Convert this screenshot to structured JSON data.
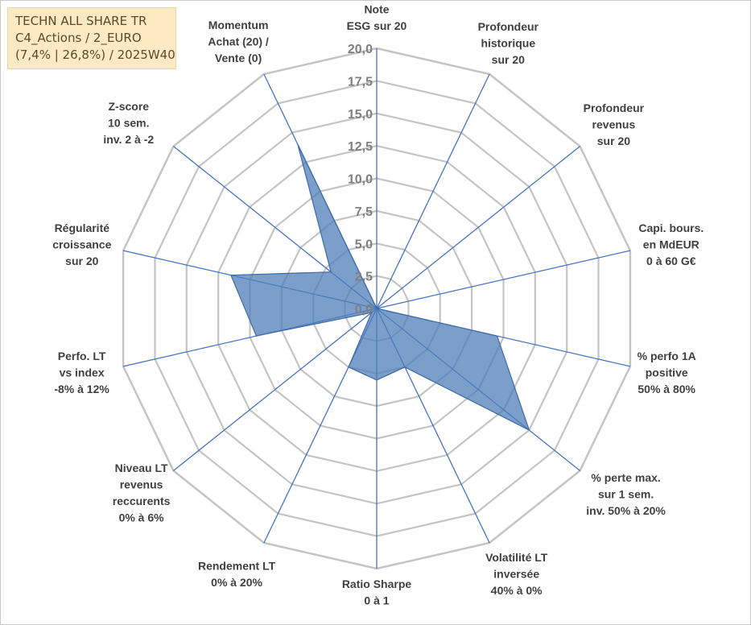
{
  "info_box": {
    "line1": "TECHN ALL SHARE TR",
    "line2": "C4_Actions / 2_EURO",
    "line3": "(7,4% | 26,8%) / 2025W40"
  },
  "chart_data": {
    "type": "radar",
    "title": "",
    "rmin": 0,
    "rmax": 20,
    "tick_step": 2.5,
    "tick_labels": [
      "0,0",
      "2,5",
      "5,0",
      "7,5",
      "10,0",
      "12,5",
      "15,0",
      "17,5",
      "20,0"
    ],
    "grid": true,
    "axes": [
      {
        "lines": [
          "Note",
          "ESG sur 20"
        ]
      },
      {
        "lines": [
          "Profondeur",
          "historique",
          "sur 20"
        ]
      },
      {
        "lines": [
          "Profondeur",
          "revenus",
          "sur 20"
        ]
      },
      {
        "lines": [
          "Capi. bours.",
          "en MdEUR",
          "0 à 60 G€"
        ]
      },
      {
        "lines": [
          "% perfo 1A",
          "positive",
          "50% à 80%"
        ]
      },
      {
        "lines": [
          "% perte max.",
          "sur 1 sem.",
          "inv. 50% à 20%"
        ]
      },
      {
        "lines": [
          "Volatilité LT",
          "inversée",
          "40% à 0%"
        ]
      },
      {
        "lines": [
          "Ratio Sharpe",
          "0 à 1"
        ]
      },
      {
        "lines": [
          "Rendement LT",
          "0% à 20%"
        ]
      },
      {
        "lines": [
          "Niveau LT",
          "revenus",
          "reccurents",
          "0% à 6%"
        ]
      },
      {
        "lines": [
          "Perfo. LT",
          "vs index",
          "-8% à 12%"
        ]
      },
      {
        "lines": [
          "Régularité",
          "croissance",
          "sur 20"
        ]
      },
      {
        "lines": [
          "Z-score",
          "10 sem.",
          "inv. 2 à -2"
        ]
      },
      {
        "lines": [
          "Momentum",
          "Achat (20) /",
          "Vente (0)"
        ]
      }
    ],
    "series": [
      {
        "name": "TECHN ALL SHARE TR",
        "color": "#4f7fb8",
        "fill_opacity": 0.75,
        "values": [
          0,
          0,
          0,
          0,
          9.5,
          15.0,
          5.0,
          5.5,
          5.0,
          0.5,
          9.5,
          11.5,
          4.5,
          14.0
        ]
      }
    ]
  }
}
